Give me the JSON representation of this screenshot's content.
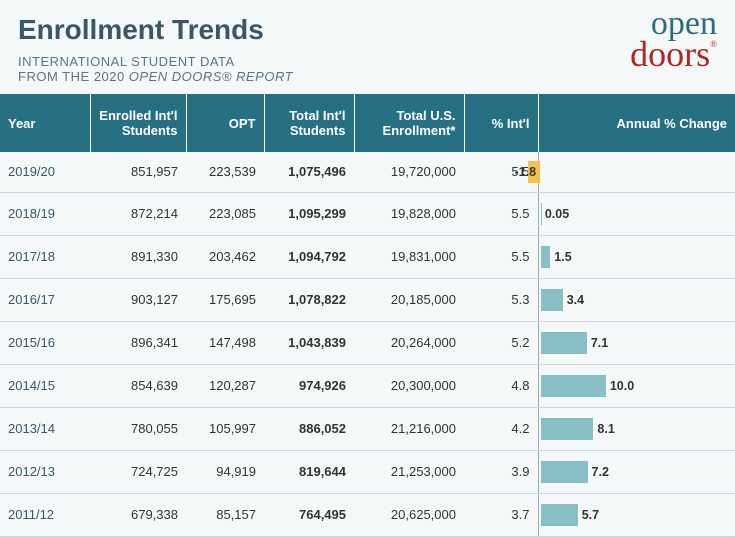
{
  "title": "Enrollment Trends",
  "subtitle1": "INTERNATIONAL STUDENT DATA",
  "subtitle2_a": "FROM THE 2020 ",
  "subtitle2_b": "OPEN DOORS",
  "subtitle2_c": "®",
  "subtitle2_d": " REPORT",
  "logo": {
    "line1": "open",
    "line2": "doors",
    "reg": "®"
  },
  "columns": {
    "year": "Year",
    "enrolled": "Enrolled Int'l Students",
    "opt": "OPT",
    "total_intl": "Total Int'l Students",
    "total_us": "Total U.S. Enrollment*",
    "pct_intl": "% Int'l",
    "annual_change": "Annual % Change"
  },
  "chart_style": {
    "max_abs_change": 16,
    "pos_bar_color": "#88bfc6",
    "neg_bar_color": "#f2c14e",
    "header_bg": "#277083"
  },
  "rows": [
    {
      "year": "2019/20",
      "enrolled": "851,957",
      "opt": "223,539",
      "total_intl": "1,075,496",
      "total_us": "19,720,000",
      "pct_intl": "5.5",
      "change": -1.8,
      "change_label": "-1.8"
    },
    {
      "year": "2018/19",
      "enrolled": "872,214",
      "opt": "223,085",
      "total_intl": "1,095,299",
      "total_us": "19,828,000",
      "pct_intl": "5.5",
      "change": 0.05,
      "change_label": "0.05"
    },
    {
      "year": "2017/18",
      "enrolled": "891,330",
      "opt": "203,462",
      "total_intl": "1,094,792",
      "total_us": "19,831,000",
      "pct_intl": "5.5",
      "change": 1.5,
      "change_label": "1.5"
    },
    {
      "year": "2016/17",
      "enrolled": "903,127",
      "opt": "175,695",
      "total_intl": "1,078,822",
      "total_us": "20,185,000",
      "pct_intl": "5.3",
      "change": 3.4,
      "change_label": "3.4"
    },
    {
      "year": "2015/16",
      "enrolled": "896,341",
      "opt": "147,498",
      "total_intl": "1,043,839",
      "total_us": "20,264,000",
      "pct_intl": "5.2",
      "change": 7.1,
      "change_label": "7.1"
    },
    {
      "year": "2014/15",
      "enrolled": "854,639",
      "opt": "120,287",
      "total_intl": "974,926",
      "total_us": "20,300,000",
      "pct_intl": "4.8",
      "change": 10.0,
      "change_label": "10.0"
    },
    {
      "year": "2013/14",
      "enrolled": "780,055",
      "opt": "105,997",
      "total_intl": "886,052",
      "total_us": "21,216,000",
      "pct_intl": "4.2",
      "change": 8.1,
      "change_label": "8.1"
    },
    {
      "year": "2012/13",
      "enrolled": "724,725",
      "opt": "94,919",
      "total_intl": "819,644",
      "total_us": "21,253,000",
      "pct_intl": "3.9",
      "change": 7.2,
      "change_label": "7.2"
    },
    {
      "year": "2011/12",
      "enrolled": "679,338",
      "opt": "85,157",
      "total_intl": "764,495",
      "total_us": "20,625,000",
      "pct_intl": "3.7",
      "change": 5.7,
      "change_label": "5.7"
    }
  ]
}
